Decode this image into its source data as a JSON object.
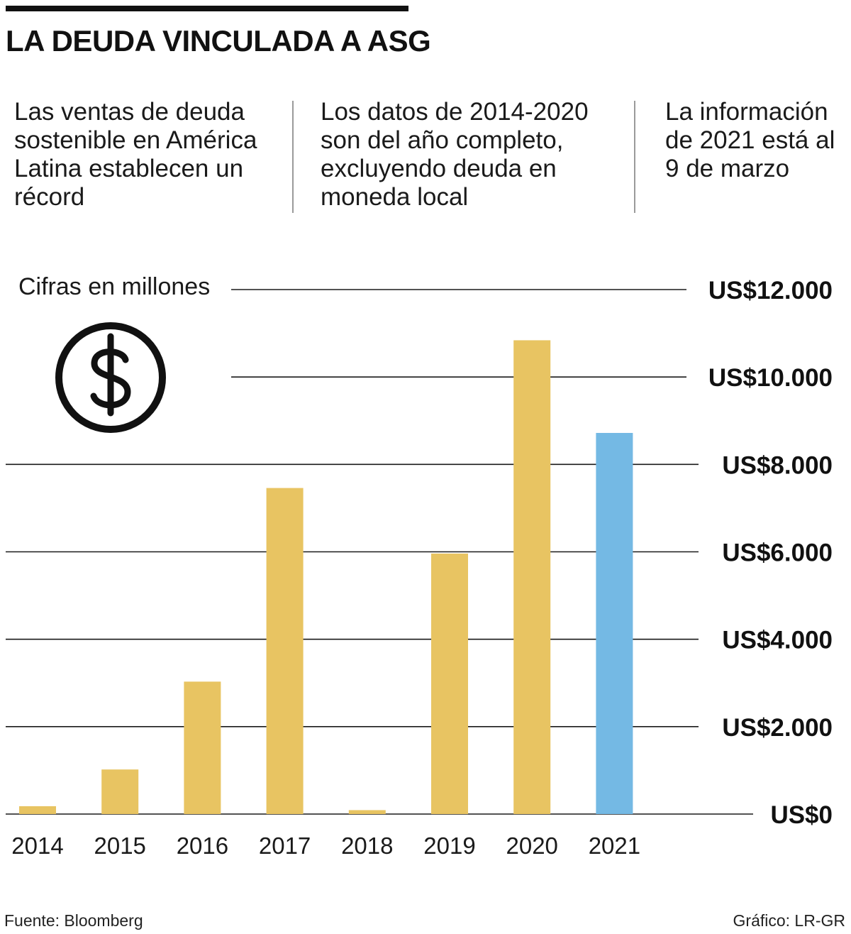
{
  "header": {
    "title": "LA DEUDA VINCULADA A ASG"
  },
  "notes": [
    "Las ventas de deuda sostenible en América Latina establecen un récord",
    "Los datos de 2014-2020 son del año completo, excluyendo deuda en moneda local",
    "La información de 2021 está al 9 de marzo"
  ],
  "unit_label": "Cifras en millones",
  "footer": {
    "source": "Fuente: Bloomberg",
    "credit": "Gráfico: LR-GR"
  },
  "icon": "dollar-circle-icon",
  "colors": {
    "full_year_bar": "#E8C462",
    "partial_year_bar": "#74B9E4",
    "gridline": "#1a1a1a"
  },
  "chart_data": {
    "type": "bar",
    "title": "LA DEUDA VINCULADA A ASG",
    "xlabel": "",
    "ylabel": "Cifras en millones",
    "categories": [
      "2014",
      "2015",
      "2016",
      "2017",
      "2018",
      "2019",
      "2020",
      "2021"
    ],
    "values": [
      180,
      1020,
      3030,
      7460,
      90,
      5960,
      10840,
      8720
    ],
    "partial_year": [
      false,
      false,
      false,
      false,
      false,
      false,
      false,
      true
    ],
    "ylim": [
      0,
      12000
    ],
    "yticks": [
      0,
      2000,
      4000,
      6000,
      8000,
      10000,
      12000
    ],
    "ytick_labels": [
      "US$0",
      "US$2.000",
      "US$4.000",
      "US$6.000",
      "US$8.000",
      "US$10.000",
      "US$12.000"
    ],
    "grid": true,
    "y_axis_position": "right"
  }
}
